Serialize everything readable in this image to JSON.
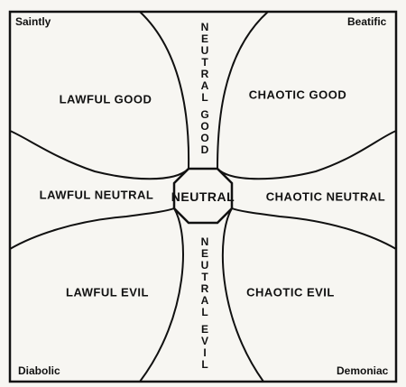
{
  "corners": {
    "top_left": "Saintly",
    "top_right": "Beatific",
    "bottom_left": "Diabolic",
    "bottom_right": "Demoniac"
  },
  "regions": {
    "lawful_good": "LAWFUL GOOD",
    "chaotic_good": "CHAOTIC GOOD",
    "lawful_neutral": "LAWFUL NEUTRAL",
    "chaotic_neutral": "CHAOTIC NEUTRAL",
    "lawful_evil": "LAWFUL EVIL",
    "chaotic_evil": "CHAOTIC EVIL",
    "neutral": "NEUTRAL",
    "neutral_good": "NEUTRAL GOOD",
    "neutral_evil": "NEUTRAL EVIL"
  },
  "colors": {
    "ink": "#111111",
    "paper": "#f7f6f2"
  }
}
